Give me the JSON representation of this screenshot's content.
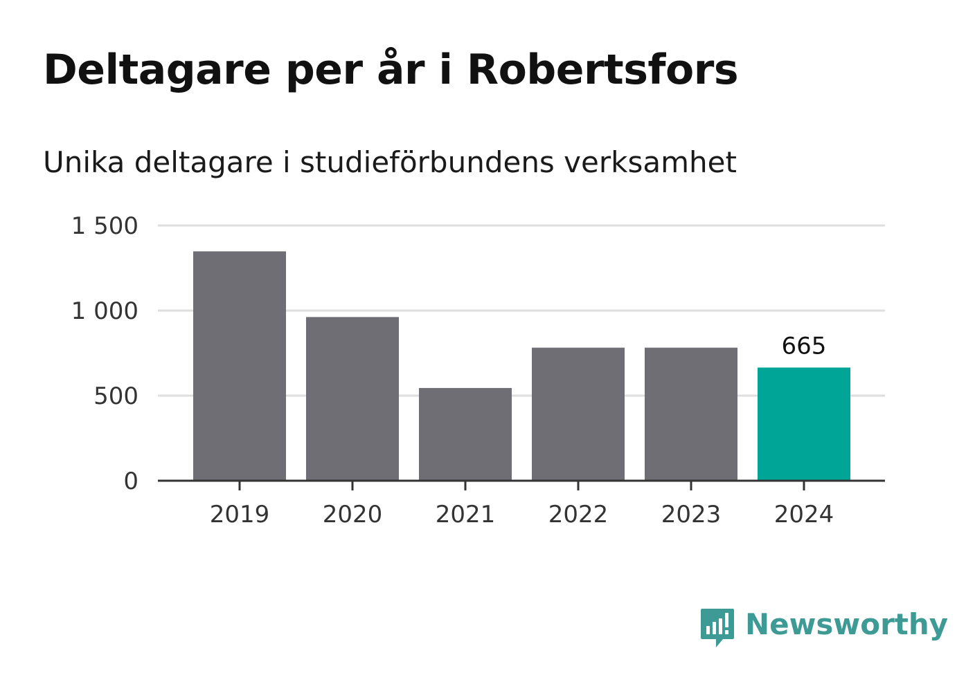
{
  "colors": {
    "bar": "#6f6e74",
    "highlight": "#00a598",
    "grid": "#dedede",
    "axis": "#333333",
    "brand": "#3d9a94"
  },
  "brand": {
    "name": "Newsworthy",
    "icon": "chart-speech-bubble-icon"
  },
  "chart_data": {
    "type": "bar",
    "title": "Deltagare per år i Robertsfors",
    "subtitle": "Unika deltagare i studieförbundens verksamhet",
    "xlabel": "",
    "ylabel": "",
    "categories": [
      "2019",
      "2020",
      "2021",
      "2022",
      "2023",
      "2024"
    ],
    "values": [
      1348,
      962,
      545,
      782,
      782,
      665
    ],
    "ylim": [
      0,
      1500
    ],
    "yticks": [
      0,
      500,
      1000,
      1500
    ],
    "ytick_labels": [
      "0",
      "500",
      "1 000",
      "1 500"
    ],
    "highlight_index": 5,
    "data_labels": [
      {
        "index": 5,
        "text": "665"
      }
    ],
    "grid": true,
    "legend": "none"
  }
}
